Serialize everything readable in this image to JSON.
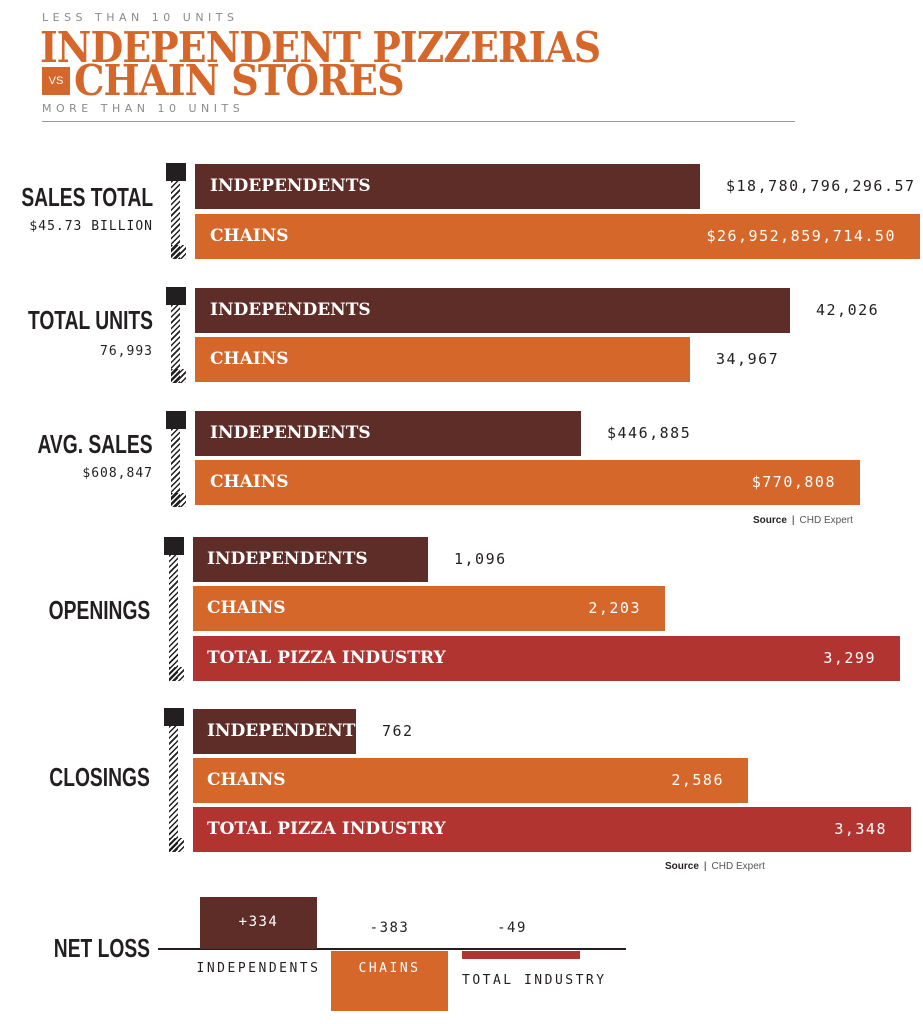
{
  "header": {
    "kicker_top": "LESS THAN 10 UNITS",
    "title_line1": "INDEPENDENT PIZZERIAS",
    "vs": "VS",
    "title_line2": "CHAIN STORES",
    "kicker_bottom": "MORE THAN 10 UNITS"
  },
  "colors": {
    "independents": "#5e2d27",
    "chains": "#d5672b",
    "total_industry": "#b23431",
    "text": "#231f20"
  },
  "source": {
    "label": "Source",
    "separator": "|",
    "name": "CHD Expert"
  },
  "chart_data": [
    {
      "type": "bar",
      "title": "SALES TOTAL",
      "subtitle": "$45.73 BILLION",
      "categories": [
        "INDEPENDENTS",
        "CHAINS"
      ],
      "values": [
        18780796296.57,
        26952859714.5
      ],
      "value_labels": [
        "$18,780,796,296.57",
        "$26,952,859,714.50"
      ]
    },
    {
      "type": "bar",
      "title": "TOTAL UNITS",
      "subtitle": "76,993",
      "categories": [
        "INDEPENDENTS",
        "CHAINS"
      ],
      "values": [
        42026,
        34967
      ],
      "value_labels": [
        "42,026",
        "34,967"
      ]
    },
    {
      "type": "bar",
      "title": "AVG. SALES",
      "subtitle": "$608,847",
      "categories": [
        "INDEPENDENTS",
        "CHAINS"
      ],
      "values": [
        446885,
        770808
      ],
      "value_labels": [
        "$446,885",
        "$770,808"
      ]
    },
    {
      "type": "bar",
      "title": "OPENINGS",
      "subtitle": "",
      "categories": [
        "INDEPENDENTS",
        "CHAINS",
        "TOTAL PIZZA INDUSTRY"
      ],
      "values": [
        1096,
        2203,
        3299
      ],
      "value_labels": [
        "1,096",
        "2,203",
        "3,299"
      ]
    },
    {
      "type": "bar",
      "title": "CLOSINGS",
      "subtitle": "",
      "categories": [
        "INDEPENDENTS",
        "CHAINS",
        "TOTAL PIZZA INDUSTRY"
      ],
      "values": [
        762,
        2586,
        3348
      ],
      "value_labels": [
        "762",
        "2,586",
        "3,348"
      ]
    },
    {
      "type": "bar",
      "title": "NET LOSS",
      "categories": [
        "INDEPENDENTS",
        "CHAINS",
        "TOTAL INDUSTRY"
      ],
      "values": [
        334,
        -383,
        -49
      ],
      "value_labels": [
        "+334",
        "-383",
        "-49"
      ]
    }
  ]
}
